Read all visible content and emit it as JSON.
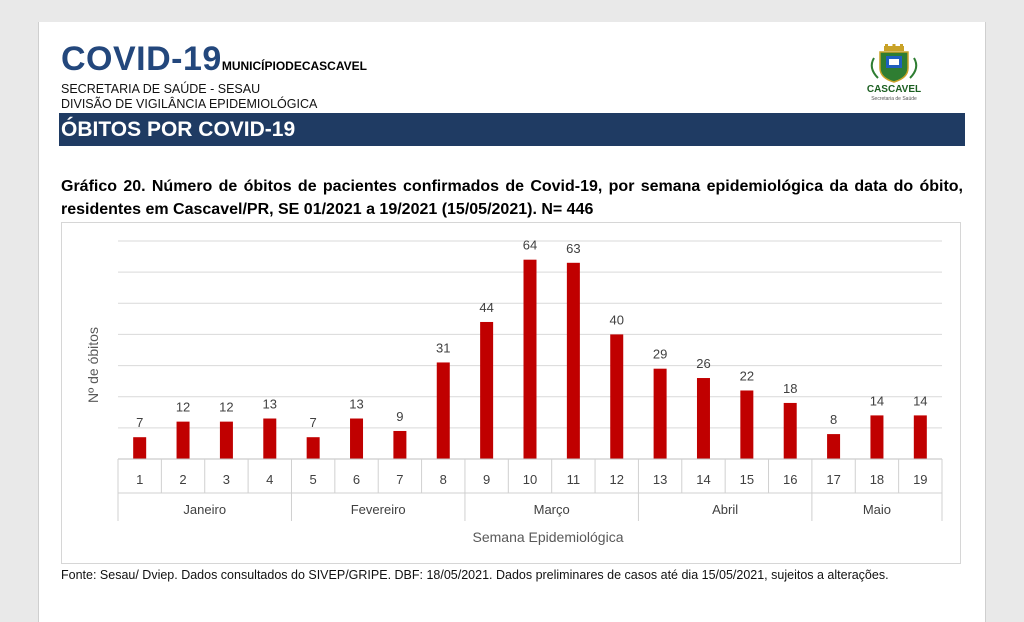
{
  "header": {
    "title_big": "COVID-19",
    "title_small": "MUNICÍPIODECASCAVEL",
    "line1": "SECRETARIA DE SAÚDE - SESAU",
    "line2": "DIVISÃO DE VIGILÂNCIA EPIDEMIOLÓGICA",
    "logo_text": "CASCAVEL",
    "logo_small": "Secretaria de Saúde"
  },
  "section": {
    "title": "ÓBITOS POR COVID-19"
  },
  "colors": {
    "bar": "#c00000",
    "section_bg": "#1f3b63",
    "brand_blue": "#23477c"
  },
  "chart_data": {
    "type": "bar",
    "title": "Gráfico 20. Número de óbitos de pacientes confirmados de Covid-19, por semana epidemiológica da data do óbito, residentes em Cascavel/PR,  SE 01/2021 a 19/2021 (15/05/2021). N= 446",
    "xlabel": "Semana Epidemiológica",
    "ylabel": "Nº de óbitos",
    "categories": [
      "1",
      "2",
      "3",
      "4",
      "5",
      "6",
      "7",
      "8",
      "9",
      "10",
      "11",
      "12",
      "13",
      "14",
      "15",
      "16",
      "17",
      "18",
      "19"
    ],
    "values": [
      7,
      12,
      12,
      13,
      7,
      13,
      9,
      31,
      44,
      64,
      63,
      40,
      29,
      26,
      22,
      18,
      8,
      14,
      14
    ],
    "groups": [
      {
        "label": "Janeiro",
        "count": 4
      },
      {
        "label": "Fevereiro",
        "count": 4
      },
      {
        "label": "Março",
        "count": 4
      },
      {
        "label": "Abril",
        "count": 4
      },
      {
        "label": "Maio",
        "count": 3
      }
    ],
    "ylim": [
      0,
      70
    ],
    "grid": true,
    "data_labels": true
  },
  "footnote": "Fonte: Sesau/ Dviep. Dados consultados do SIVEP/GRIPE. DBF: 18/05/2021. Dados preliminares de casos até dia 15/05/2021, sujeitos a alterações."
}
